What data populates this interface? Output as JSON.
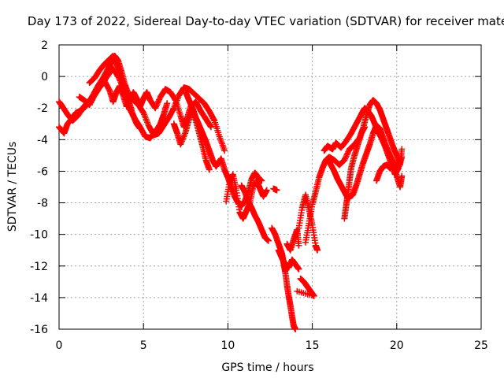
{
  "chart_data": {
    "type": "scatter",
    "title": "Day 173 of 2022, Sidereal Day-to-day VTEC variation (SDTVAR) for receiver mate",
    "xlabel": "GPS time / hours",
    "ylabel": "SDTVAR / TECUs",
    "xlim": [
      0,
      25
    ],
    "ylim": [
      -16,
      2
    ],
    "xticks": [
      0,
      5,
      10,
      15,
      20,
      25
    ],
    "yticks": [
      2,
      0,
      -2,
      -4,
      -6,
      -8,
      -10,
      -12,
      -14,
      -16
    ],
    "grid": true,
    "legend": "none",
    "marker": "+",
    "marker_color": "#ff0000",
    "series": [
      {
        "points": [
          [
            0.0,
            -3.2
          ],
          [
            0.3,
            -3.6
          ],
          [
            0.5,
            -3.0
          ],
          [
            0.8,
            -2.6
          ],
          [
            1.0,
            -2.3
          ],
          [
            1.4,
            -2.1
          ],
          [
            1.8,
            -1.6
          ],
          [
            2.0,
            -1.2
          ],
          [
            2.3,
            -0.6
          ],
          [
            2.6,
            -0.1
          ],
          [
            2.9,
            0.5
          ],
          [
            3.1,
            0.9
          ],
          [
            3.3,
            1.3
          ],
          [
            3.5,
            1.0
          ],
          [
            3.7,
            0.3
          ],
          [
            3.9,
            -0.5
          ],
          [
            4.1,
            -1.1
          ],
          [
            4.4,
            -1.5
          ],
          [
            4.7,
            -1.8
          ],
          [
            5.0,
            -2.3
          ],
          [
            5.3,
            -3.1
          ],
          [
            5.6,
            -3.7
          ],
          [
            5.9,
            -3.6
          ],
          [
            6.2,
            -3.1
          ],
          [
            6.5,
            -2.6
          ],
          [
            6.8,
            -2.0
          ],
          [
            7.1,
            -1.2
          ],
          [
            7.4,
            -0.7
          ],
          [
            7.7,
            -0.8
          ],
          [
            8.0,
            -1.1
          ],
          [
            8.3,
            -1.4
          ],
          [
            8.6,
            -1.7
          ],
          [
            8.9,
            -2.2
          ],
          [
            9.2,
            -2.8
          ],
          [
            9.5,
            -3.8
          ],
          [
            9.8,
            -4.7
          ]
        ]
      },
      {
        "points": [
          [
            0.0,
            -1.6
          ],
          [
            0.2,
            -1.9
          ],
          [
            0.5,
            -2.4
          ],
          [
            0.8,
            -2.8
          ],
          [
            1.1,
            -2.5
          ],
          [
            1.4,
            -2.0
          ],
          [
            1.7,
            -1.6
          ],
          [
            2.0,
            -1.3
          ],
          [
            2.3,
            -0.8
          ],
          [
            2.6,
            -0.4
          ],
          [
            2.9,
            0.1
          ],
          [
            3.2,
            0.5
          ],
          [
            3.5,
            0.0
          ],
          [
            3.8,
            -0.7
          ],
          [
            4.0,
            -1.4
          ],
          [
            4.2,
            -2.1
          ],
          [
            4.5,
            -2.7
          ],
          [
            4.8,
            -3.2
          ],
          [
            5.1,
            -3.8
          ],
          [
            5.4,
            -3.9
          ],
          [
            5.7,
            -3.5
          ],
          [
            6.0,
            -3.0
          ],
          [
            6.2,
            -2.4
          ],
          [
            6.4,
            -1.7
          ]
        ]
      },
      {
        "points": [
          [
            1.2,
            -1.3
          ],
          [
            1.5,
            -1.5
          ],
          [
            1.8,
            -1.8
          ],
          [
            2.1,
            -1.2
          ],
          [
            2.4,
            -0.7
          ],
          [
            2.7,
            -0.3
          ],
          [
            3.0,
            -0.9
          ],
          [
            3.2,
            -1.6
          ],
          [
            3.4,
            -1.0
          ],
          [
            3.6,
            -0.6
          ],
          [
            3.8,
            -1.2
          ],
          [
            4.0,
            -1.9
          ],
          [
            4.2,
            -1.5
          ],
          [
            4.4,
            -1.0
          ],
          [
            4.6,
            -1.4
          ],
          [
            4.8,
            -1.9
          ],
          [
            5.0,
            -1.4
          ],
          [
            5.2,
            -1.0
          ],
          [
            5.4,
            -1.5
          ],
          [
            5.7,
            -2.0
          ],
          [
            6.0,
            -1.3
          ],
          [
            6.3,
            -0.8
          ],
          [
            6.6,
            -1.0
          ],
          [
            6.9,
            -1.5
          ],
          [
            7.2,
            -2.5
          ],
          [
            7.4,
            -3.2
          ],
          [
            7.6,
            -2.6
          ],
          [
            7.8,
            -1.9
          ],
          [
            8.1,
            -1.6
          ],
          [
            8.4,
            -2.2
          ],
          [
            8.7,
            -2.7
          ],
          [
            9.0,
            -3.2
          ]
        ]
      },
      {
        "points": [
          [
            1.8,
            -0.4
          ],
          [
            2.1,
            -0.1
          ],
          [
            2.4,
            0.4
          ],
          [
            2.7,
            0.8
          ],
          [
            3.0,
            1.1
          ],
          [
            3.2,
            1.3
          ],
          [
            3.4,
            0.8
          ],
          [
            3.6,
            0.2
          ],
          [
            3.8,
            -0.4
          ],
          [
            4.0,
            -1.1
          ],
          [
            4.2,
            -1.8
          ],
          [
            4.4,
            -2.5
          ],
          [
            4.6,
            -3.0
          ],
          [
            4.8,
            -3.3
          ]
        ]
      },
      {
        "points": [
          [
            6.8,
            -3.0
          ],
          [
            7.0,
            -3.6
          ],
          [
            7.2,
            -4.3
          ],
          [
            7.5,
            -3.5
          ],
          [
            7.7,
            -2.7
          ],
          [
            7.9,
            -2.0
          ],
          [
            8.1,
            -2.8
          ],
          [
            8.3,
            -3.6
          ],
          [
            8.5,
            -4.4
          ],
          [
            8.7,
            -5.3
          ],
          [
            8.9,
            -5.9
          ]
        ]
      },
      {
        "points": [
          [
            7.5,
            -1.0
          ],
          [
            7.7,
            -1.5
          ],
          [
            7.9,
            -2.0
          ],
          [
            8.1,
            -2.6
          ],
          [
            8.3,
            -3.1
          ],
          [
            8.5,
            -3.6
          ],
          [
            8.7,
            -4.1
          ],
          [
            8.9,
            -4.7
          ],
          [
            9.1,
            -5.3
          ],
          [
            9.3,
            -5.7
          ],
          [
            9.6,
            -5.2
          ],
          [
            9.8,
            -5.9
          ],
          [
            10.0,
            -6.4
          ],
          [
            10.2,
            -7.0
          ],
          [
            10.4,
            -7.6
          ],
          [
            10.6,
            -8.0
          ],
          [
            10.8,
            -8.2
          ],
          [
            11.0,
            -7.9
          ],
          [
            11.2,
            -7.3
          ],
          [
            11.4,
            -6.5
          ],
          [
            11.6,
            -6.1
          ],
          [
            11.8,
            -6.4
          ],
          [
            12.0,
            -6.6
          ]
        ]
      },
      {
        "points": [
          [
            9.9,
            -7.9
          ],
          [
            10.1,
            -6.7
          ],
          [
            10.3,
            -6.2
          ],
          [
            10.5,
            -7.2
          ],
          [
            10.7,
            -8.6
          ],
          [
            10.9,
            -9.0
          ],
          [
            11.1,
            -8.5
          ],
          [
            11.3,
            -8.0
          ],
          [
            11.5,
            -7.0
          ],
          [
            11.7,
            -6.6
          ],
          [
            11.9,
            -7.1
          ],
          [
            12.1,
            -7.6
          ],
          [
            12.3,
            -7.2
          ]
        ]
      },
      {
        "points": [
          [
            10.8,
            -6.9
          ],
          [
            11.0,
            -7.3
          ],
          [
            11.2,
            -7.9
          ],
          [
            11.4,
            -8.3
          ],
          [
            11.6,
            -8.8
          ],
          [
            11.8,
            -9.2
          ],
          [
            12.0,
            -9.7
          ],
          [
            12.2,
            -10.2
          ],
          [
            12.4,
            -10.4
          ]
        ]
      },
      {
        "points": [
          [
            12.7,
            -7.1
          ],
          [
            12.9,
            -7.2
          ]
        ]
      },
      {
        "points": [
          [
            12.6,
            -9.6
          ],
          [
            12.8,
            -10.0
          ],
          [
            13.0,
            -10.6
          ],
          [
            13.2,
            -11.2
          ],
          [
            13.3,
            -11.8
          ],
          [
            13.4,
            -12.4
          ],
          [
            13.5,
            -13.2
          ],
          [
            13.6,
            -13.9
          ],
          [
            13.7,
            -14.5
          ],
          [
            13.8,
            -15.2
          ],
          [
            13.9,
            -15.8
          ],
          [
            14.0,
            -16.0
          ]
        ]
      },
      {
        "points": [
          [
            13.0,
            -11.0
          ],
          [
            13.2,
            -11.5
          ],
          [
            13.4,
            -11.9
          ],
          [
            13.6,
            -12.1
          ],
          [
            13.8,
            -11.6
          ],
          [
            14.0,
            -11.9
          ],
          [
            14.2,
            -12.2
          ]
        ]
      },
      {
        "points": [
          [
            13.5,
            -10.6
          ],
          [
            13.7,
            -11.0
          ],
          [
            13.9,
            -10.3
          ],
          [
            14.1,
            -9.7
          ],
          [
            14.2,
            -10.7
          ]
        ]
      },
      {
        "points": [
          [
            14.3,
            -12.8
          ],
          [
            14.5,
            -13.0
          ],
          [
            14.7,
            -13.3
          ],
          [
            14.9,
            -13.6
          ],
          [
            15.1,
            -13.9
          ],
          [
            14.1,
            -13.6
          ]
        ]
      },
      {
        "points": [
          [
            14.2,
            -9.6
          ],
          [
            14.4,
            -8.3
          ],
          [
            14.6,
            -7.5
          ],
          [
            14.8,
            -8.4
          ],
          [
            15.0,
            -9.4
          ],
          [
            15.2,
            -10.7
          ],
          [
            15.3,
            -11.0
          ]
        ]
      },
      {
        "points": [
          [
            14.6,
            -10.5
          ],
          [
            14.8,
            -9.3
          ],
          [
            15.0,
            -8.1
          ],
          [
            15.2,
            -7.3
          ],
          [
            15.4,
            -6.4
          ],
          [
            15.6,
            -5.8
          ],
          [
            15.8,
            -5.3
          ],
          [
            16.0,
            -5.1
          ],
          [
            16.3,
            -5.3
          ],
          [
            16.6,
            -5.6
          ],
          [
            16.9,
            -5.3
          ],
          [
            17.2,
            -4.6
          ],
          [
            17.5,
            -4.3
          ],
          [
            17.8,
            -3.9
          ],
          [
            18.0,
            -3.3
          ],
          [
            18.2,
            -2.5
          ],
          [
            18.4,
            -1.8
          ],
          [
            18.6,
            -1.5
          ],
          [
            18.8,
            -1.7
          ],
          [
            19.0,
            -2.1
          ],
          [
            19.2,
            -2.7
          ],
          [
            19.4,
            -3.3
          ],
          [
            19.6,
            -3.9
          ],
          [
            19.8,
            -4.5
          ],
          [
            20.0,
            -5.0
          ],
          [
            20.2,
            -5.6
          ],
          [
            20.3,
            -4.6
          ]
        ]
      },
      {
        "points": [
          [
            15.7,
            -4.7
          ],
          [
            15.9,
            -4.4
          ],
          [
            16.2,
            -4.6
          ],
          [
            16.4,
            -4.2
          ],
          [
            16.7,
            -4.5
          ],
          [
            17.0,
            -4.1
          ],
          [
            17.3,
            -3.6
          ],
          [
            17.6,
            -3.0
          ],
          [
            17.9,
            -2.4
          ],
          [
            18.1,
            -2.0
          ],
          [
            18.3,
            -2.2
          ],
          [
            18.5,
            -2.5
          ],
          [
            18.7,
            -3.0
          ],
          [
            18.9,
            -3.5
          ],
          [
            19.1,
            -3.9
          ],
          [
            19.3,
            -4.4
          ],
          [
            19.5,
            -5.0
          ],
          [
            19.7,
            -5.6
          ],
          [
            19.9,
            -6.2
          ],
          [
            20.1,
            -5.8
          ],
          [
            20.3,
            -5.1
          ]
        ]
      },
      {
        "points": [
          [
            15.9,
            -5.2
          ],
          [
            16.1,
            -5.6
          ],
          [
            16.3,
            -6.0
          ],
          [
            16.5,
            -6.5
          ],
          [
            16.7,
            -6.9
          ],
          [
            16.9,
            -7.3
          ],
          [
            17.1,
            -7.7
          ],
          [
            17.4,
            -7.5
          ],
          [
            17.6,
            -6.9
          ],
          [
            17.8,
            -6.2
          ],
          [
            18.0,
            -5.5
          ],
          [
            18.2,
            -4.9
          ],
          [
            18.4,
            -4.3
          ],
          [
            18.6,
            -3.6
          ],
          [
            18.8,
            -3.1
          ],
          [
            19.0,
            -3.3
          ],
          [
            19.2,
            -3.9
          ],
          [
            19.4,
            -4.5
          ],
          [
            19.6,
            -5.0
          ],
          [
            19.8,
            -5.5
          ],
          [
            20.0,
            -5.7
          ],
          [
            20.2,
            -5.4
          ]
        ]
      },
      {
        "points": [
          [
            16.9,
            -9.0
          ],
          [
            17.0,
            -8.2
          ],
          [
            17.1,
            -7.5
          ],
          [
            17.2,
            -6.6
          ],
          [
            17.3,
            -5.8
          ],
          [
            17.5,
            -5.0
          ],
          [
            17.7,
            -4.3
          ],
          [
            17.9,
            -3.6
          ],
          [
            18.1,
            -3.2
          ]
        ]
      },
      {
        "points": [
          [
            18.8,
            -6.6
          ],
          [
            19.0,
            -6.0
          ],
          [
            19.2,
            -5.7
          ],
          [
            19.4,
            -5.6
          ],
          [
            19.6,
            -5.8
          ],
          [
            19.8,
            -5.5
          ],
          [
            20.0,
            -6.3
          ],
          [
            20.2,
            -7.0
          ],
          [
            20.3,
            -6.3
          ]
        ]
      }
    ]
  }
}
